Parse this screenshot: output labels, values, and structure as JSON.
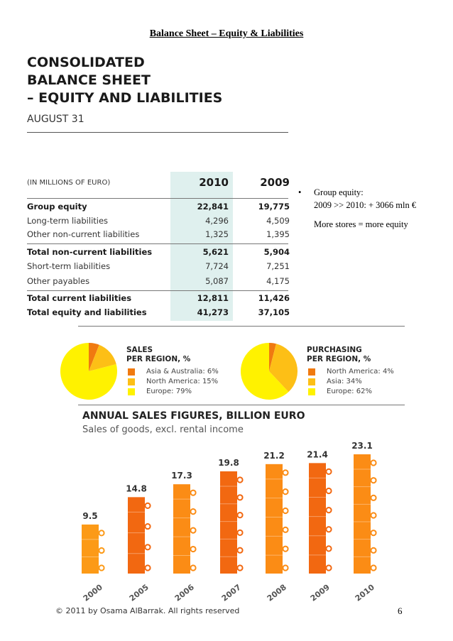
{
  "header": {
    "title": "Balance Sheet – Equity & Liabilities"
  },
  "statement": {
    "title_line1": "CONSOLIDATED",
    "title_line2": "BALANCE SHEET",
    "title_line3": "– EQUITY AND LIABILITIES",
    "subtitle": "AUGUST 31",
    "units": "(IN MILLIONS OF EURO)",
    "year_current": "2010",
    "year_prior": "2009",
    "rows": [
      {
        "label": "Group equity",
        "v2010": "22,841",
        "v2009": "19,775"
      },
      {
        "label": "Long-term liabilities",
        "v2010": "4,296",
        "v2009": "4,509"
      },
      {
        "label": "Other non-current liabilities",
        "v2010": "1,325",
        "v2009": "1,395"
      },
      {
        "label": "Total non-current liabilities",
        "v2010": "5,621",
        "v2009": "5,904"
      },
      {
        "label": "Short-term liabilities",
        "v2010": "7,724",
        "v2009": "7,251"
      },
      {
        "label": "Other payables",
        "v2010": "5,087",
        "v2009": "4,175"
      },
      {
        "label": "Total current liabilities",
        "v2010": "12,811",
        "v2009": "11,426"
      },
      {
        "label": "Total equity and liabilities",
        "v2010": "41,273",
        "v2009": "37,105"
      }
    ]
  },
  "notes": {
    "bullet_symbol": "•",
    "bullet_line1": "Group equity:",
    "bullet_line2": "2009 >> 2010: + 3066 mln €",
    "comment": "More stores = more equity"
  },
  "chart_data": [
    {
      "type": "pie",
      "title": "SALES PER REGION, %",
      "title_line1": "SALES",
      "title_line2": "PER REGION, %",
      "labels": [
        "Asia & Australia: 6%",
        "North America: 15%",
        "Europe: 79%"
      ],
      "values": [
        6,
        15,
        79
      ],
      "colors": [
        "#f07a10",
        "#fdbf16",
        "#fff200"
      ]
    },
    {
      "type": "pie",
      "title": "PURCHASING PER REGION, %",
      "title_line1": "PURCHASING",
      "title_line2": "PER REGION, %",
      "labels": [
        "North America: 4%",
        "Asia: 34%",
        "Europe: 62%"
      ],
      "values": [
        4,
        34,
        62
      ],
      "colors": [
        "#f07a10",
        "#fdbf16",
        "#fff200"
      ]
    },
    {
      "type": "bar",
      "title": "ANNUAL SALES FIGURES, BILLION EURO",
      "subtitle": "Sales of goods, excl. rental income",
      "categories": [
        "2000",
        "2005",
        "2006",
        "2007",
        "2008",
        "2009",
        "2010"
      ],
      "values": [
        9.5,
        14.8,
        17.3,
        19.8,
        21.2,
        21.4,
        23.1
      ],
      "value_labels": [
        "9.5",
        "14.8",
        "17.3",
        "19.8",
        "21.2",
        "21.4",
        "23.1"
      ],
      "colors": [
        "#fc9a17",
        "#f26811",
        "#fb8c15",
        "#f26811",
        "#fb8c15",
        "#f26811",
        "#fb8c15"
      ],
      "ylim": [
        0,
        23.1
      ]
    }
  ],
  "footer": {
    "copyright": "© 2011 by Osama AlBarrak. All rights reserved",
    "page_number": "6"
  }
}
